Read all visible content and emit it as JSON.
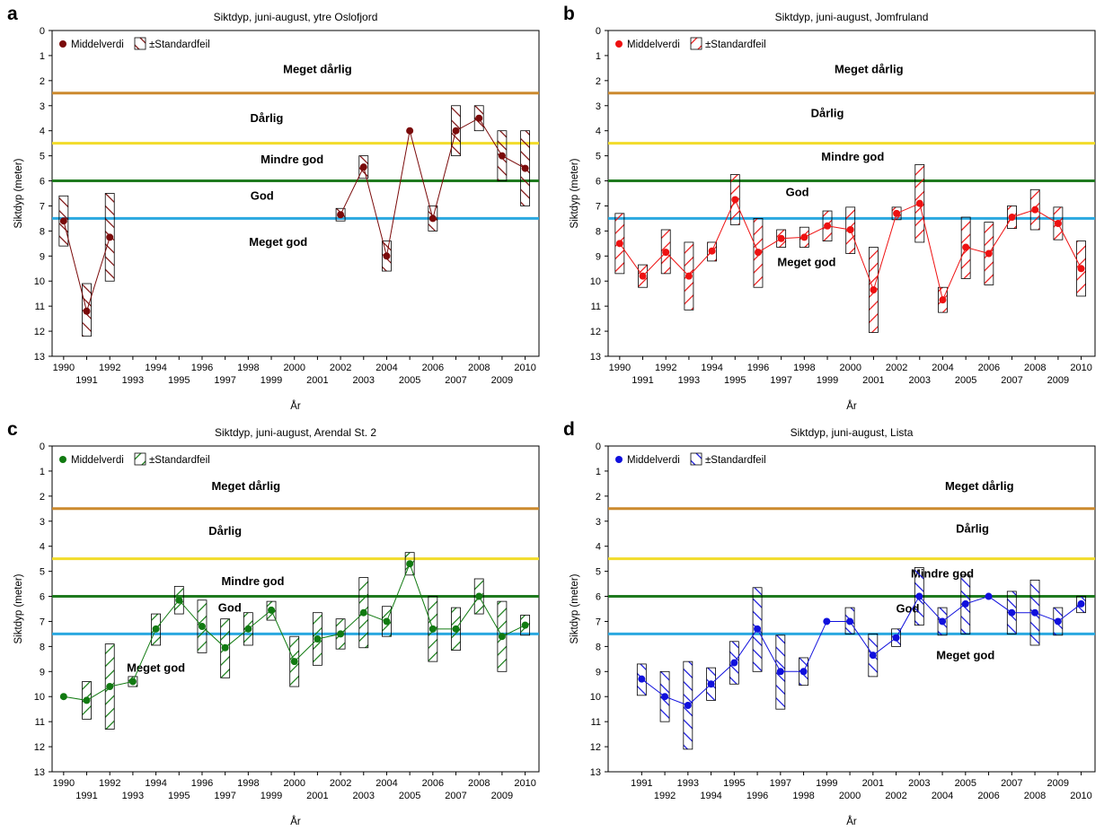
{
  "chart_data": [
    {
      "type": "line",
      "letter": "a",
      "title": "Siktdyp, juni-august, ytre Oslofjord",
      "xlabel": "År",
      "ylabel": "Siktdyp (meter)",
      "ylim": [
        0,
        13
      ],
      "y_inverted": true,
      "xlim": [
        1989.5,
        2010.6
      ],
      "x_ticks": [
        1990,
        1991,
        1992,
        1993,
        1994,
        1995,
        1996,
        1997,
        1998,
        1999,
        2000,
        2001,
        2002,
        2003,
        2004,
        2005,
        2006,
        2007,
        2008,
        2009,
        2010
      ],
      "y_ticks": [
        0,
        1,
        2,
        3,
        4,
        5,
        6,
        7,
        8,
        9,
        10,
        11,
        12,
        13
      ],
      "color": "#7a0a0a",
      "hatch": "back",
      "legend": {
        "mean": "Middelverdi",
        "se": "±Standardfeil",
        "position": "top-left"
      },
      "points": [
        {
          "year": 1990,
          "mean": 7.6,
          "lo": 6.6,
          "hi": 8.6
        },
        {
          "year": 1991,
          "mean": 11.2,
          "lo": 10.1,
          "hi": 12.2
        },
        {
          "year": 1992,
          "mean": 8.25,
          "lo": 6.5,
          "hi": 10.0
        },
        {
          "year": 2002,
          "mean": 7.35,
          "lo": 7.1,
          "hi": 7.6
        },
        {
          "year": 2003,
          "mean": 5.45,
          "lo": 5.0,
          "hi": 5.9
        },
        {
          "year": 2004,
          "mean": 9.0,
          "lo": 8.4,
          "hi": 9.6
        },
        {
          "year": 2005,
          "mean": 4.0,
          "lo": 4.0,
          "hi": 4.0
        },
        {
          "year": 2006,
          "mean": 7.5,
          "lo": 7.0,
          "hi": 8.0
        },
        {
          "year": 2007,
          "mean": 4.0,
          "lo": 3.0,
          "hi": 5.0
        },
        {
          "year": 2008,
          "mean": 3.5,
          "lo": 3.0,
          "hi": 4.0
        },
        {
          "year": 2009,
          "mean": 5.0,
          "lo": 4.0,
          "hi": 6.0
        },
        {
          "year": 2010,
          "mean": 5.5,
          "lo": 4.0,
          "hi": 7.0
        }
      ],
      "thresholds": [
        {
          "value": 2.5,
          "color": "#cc8a2e"
        },
        {
          "value": 4.5,
          "color": "#f2dc2a"
        },
        {
          "value": 6.0,
          "color": "#1f7a1f"
        },
        {
          "value": 7.5,
          "color": "#2aa8e0"
        }
      ],
      "class_labels": [
        {
          "text": "Meget dårlig",
          "year": 2001,
          "y": 1.7
        },
        {
          "text": "Dårlig",
          "year": 1998.8,
          "y": 3.65
        },
        {
          "text": "Mindre god",
          "year": 1999.9,
          "y": 5.3
        },
        {
          "text": "God",
          "year": 1998.6,
          "y": 6.75
        },
        {
          "text": "Meget god",
          "year": 1999.3,
          "y": 8.6
        }
      ]
    },
    {
      "type": "line",
      "letter": "b",
      "title": "Siktdyp, juni-august, Jomfruland",
      "xlabel": "År",
      "ylabel": "Siktdyp (meter)",
      "ylim": [
        0,
        13
      ],
      "y_inverted": true,
      "xlim": [
        1989.5,
        2010.6
      ],
      "x_ticks": [
        1990,
        1991,
        1992,
        1993,
        1994,
        1995,
        1996,
        1997,
        1998,
        1999,
        2000,
        2001,
        2002,
        2003,
        2004,
        2005,
        2006,
        2007,
        2008,
        2009,
        2010
      ],
      "y_ticks": [
        0,
        1,
        2,
        3,
        4,
        5,
        6,
        7,
        8,
        9,
        10,
        11,
        12,
        13
      ],
      "color": "#ee1111",
      "hatch": "forward",
      "legend": {
        "mean": "Middelverdi",
        "se": "±Standardfeil",
        "position": "top-left"
      },
      "points": [
        {
          "year": 1990,
          "mean": 8.5,
          "lo": 7.3,
          "hi": 9.7
        },
        {
          "year": 1991,
          "mean": 9.8,
          "lo": 9.35,
          "hi": 10.25
        },
        {
          "year": 1992,
          "mean": 8.85,
          "lo": 7.95,
          "hi": 9.7
        },
        {
          "year": 1993,
          "mean": 9.8,
          "lo": 8.45,
          "hi": 11.15
        },
        {
          "year": 1994,
          "mean": 8.8,
          "lo": 8.45,
          "hi": 9.2
        },
        {
          "year": 1995,
          "mean": 6.75,
          "lo": 5.75,
          "hi": 7.75
        },
        {
          "year": 1996,
          "mean": 8.85,
          "lo": 7.5,
          "hi": 10.25
        },
        {
          "year": 1997,
          "mean": 8.3,
          "lo": 7.95,
          "hi": 8.65
        },
        {
          "year": 1998,
          "mean": 8.25,
          "lo": 7.85,
          "hi": 8.65
        },
        {
          "year": 1999,
          "mean": 7.8,
          "lo": 7.2,
          "hi": 8.4
        },
        {
          "year": 2000,
          "mean": 7.95,
          "lo": 7.05,
          "hi": 8.9
        },
        {
          "year": 2001,
          "mean": 10.35,
          "lo": 8.65,
          "hi": 12.05
        },
        {
          "year": 2002,
          "mean": 7.3,
          "lo": 7.05,
          "hi": 7.55
        },
        {
          "year": 2003,
          "mean": 6.9,
          "lo": 5.35,
          "hi": 8.45
        },
        {
          "year": 2004,
          "mean": 10.75,
          "lo": 10.25,
          "hi": 11.25
        },
        {
          "year": 2005,
          "mean": 8.65,
          "lo": 7.45,
          "hi": 9.9
        },
        {
          "year": 2006,
          "mean": 8.9,
          "lo": 7.65,
          "hi": 10.15
        },
        {
          "year": 2007,
          "mean": 7.45,
          "lo": 7.0,
          "hi": 7.9
        },
        {
          "year": 2008,
          "mean": 7.15,
          "lo": 6.35,
          "hi": 7.95
        },
        {
          "year": 2009,
          "mean": 7.7,
          "lo": 7.05,
          "hi": 8.35
        },
        {
          "year": 2010,
          "mean": 9.5,
          "lo": 8.4,
          "hi": 10.6
        }
      ],
      "thresholds": [
        {
          "value": 2.5,
          "color": "#cc8a2e"
        },
        {
          "value": 4.5,
          "color": "#f2dc2a"
        },
        {
          "value": 6.0,
          "color": "#1f7a1f"
        },
        {
          "value": 7.5,
          "color": "#2aa8e0"
        }
      ],
      "class_labels": [
        {
          "text": "Meget dårlig",
          "year": 2000.8,
          "y": 1.7
        },
        {
          "text": "Dårlig",
          "year": 1999.0,
          "y": 3.45
        },
        {
          "text": "Mindre god",
          "year": 2000.1,
          "y": 5.2
        },
        {
          "text": "God",
          "year": 1997.7,
          "y": 6.6
        },
        {
          "text": "Meget god",
          "year": 1998.1,
          "y": 9.4
        }
      ]
    },
    {
      "type": "line",
      "letter": "c",
      "title": "Siktdyp, juni-august, Arendal St. 2",
      "xlabel": "År",
      "ylabel": "Siktdyp (meter)",
      "ylim": [
        0,
        13
      ],
      "y_inverted": true,
      "xlim": [
        1989.5,
        2010.6
      ],
      "x_ticks": [
        1990,
        1991,
        1992,
        1993,
        1994,
        1995,
        1996,
        1997,
        1998,
        1999,
        2000,
        2001,
        2002,
        2003,
        2004,
        2005,
        2006,
        2007,
        2008,
        2009,
        2010
      ],
      "y_ticks": [
        0,
        1,
        2,
        3,
        4,
        5,
        6,
        7,
        8,
        9,
        10,
        11,
        12,
        13
      ],
      "color": "#117a11",
      "hatch": "forward",
      "legend": {
        "mean": "Middelverdi",
        "se": "±Standardfeil",
        "position": "top-left"
      },
      "points": [
        {
          "year": 1990,
          "mean": 10.0,
          "lo": 10.0,
          "hi": 10.0
        },
        {
          "year": 1991,
          "mean": 10.15,
          "lo": 9.4,
          "hi": 10.9
        },
        {
          "year": 1992,
          "mean": 9.6,
          "lo": 7.9,
          "hi": 11.3
        },
        {
          "year": 1993,
          "mean": 9.4,
          "lo": 9.2,
          "hi": 9.6
        },
        {
          "year": 1994,
          "mean": 7.3,
          "lo": 6.7,
          "hi": 7.95
        },
        {
          "year": 1995,
          "mean": 6.15,
          "lo": 5.6,
          "hi": 6.7
        },
        {
          "year": 1996,
          "mean": 7.2,
          "lo": 6.15,
          "hi": 8.25
        },
        {
          "year": 1997,
          "mean": 8.05,
          "lo": 6.9,
          "hi": 9.25
        },
        {
          "year": 1998,
          "mean": 7.3,
          "lo": 6.65,
          "hi": 7.95
        },
        {
          "year": 1999,
          "mean": 6.55,
          "lo": 6.2,
          "hi": 6.95
        },
        {
          "year": 2000,
          "mean": 8.6,
          "lo": 7.6,
          "hi": 9.6
        },
        {
          "year": 2001,
          "mean": 7.7,
          "lo": 6.65,
          "hi": 8.75
        },
        {
          "year": 2002,
          "mean": 7.5,
          "lo": 6.9,
          "hi": 8.1
        },
        {
          "year": 2003,
          "mean": 6.65,
          "lo": 5.25,
          "hi": 8.05
        },
        {
          "year": 2004,
          "mean": 7.0,
          "lo": 6.4,
          "hi": 7.6
        },
        {
          "year": 2005,
          "mean": 4.7,
          "lo": 4.25,
          "hi": 5.15
        },
        {
          "year": 2006,
          "mean": 7.3,
          "lo": 6.0,
          "hi": 8.6
        },
        {
          "year": 2007,
          "mean": 7.3,
          "lo": 6.45,
          "hi": 8.15
        },
        {
          "year": 2008,
          "mean": 6.0,
          "lo": 5.3,
          "hi": 6.7
        },
        {
          "year": 2009,
          "mean": 7.6,
          "lo": 6.2,
          "hi": 9.0
        },
        {
          "year": 2010,
          "mean": 7.15,
          "lo": 6.75,
          "hi": 7.55
        }
      ],
      "thresholds": [
        {
          "value": 2.5,
          "color": "#cc8a2e"
        },
        {
          "value": 4.5,
          "color": "#f2dc2a"
        },
        {
          "value": 6.0,
          "color": "#1f7a1f"
        },
        {
          "value": 7.5,
          "color": "#2aa8e0"
        }
      ],
      "class_labels": [
        {
          "text": "Meget dårlig",
          "year": 1997.9,
          "y": 1.75
        },
        {
          "text": "Dårlig",
          "year": 1997.0,
          "y": 3.55
        },
        {
          "text": "Mindre god",
          "year": 1998.2,
          "y": 5.55
        },
        {
          "text": "God",
          "year": 1997.2,
          "y": 6.6
        },
        {
          "text": "Meget god",
          "year": 1994.0,
          "y": 9.0
        }
      ]
    },
    {
      "type": "line",
      "letter": "d",
      "title": "Siktdyp, juni-august, Lista",
      "xlabel": "År",
      "ylabel": "Siktdyp (meter)",
      "ylim": [
        0,
        13
      ],
      "y_inverted": true,
      "xlim": [
        1989.55,
        2010.6
      ],
      "x_ticks": [
        1991,
        1992,
        1993,
        1994,
        1995,
        1996,
        1997,
        1998,
        1999,
        2000,
        2001,
        2002,
        2003,
        2004,
        2005,
        2006,
        2007,
        2008,
        2009,
        2010
      ],
      "y_ticks": [
        0,
        1,
        2,
        3,
        4,
        5,
        6,
        7,
        8,
        9,
        10,
        11,
        12,
        13
      ],
      "color": "#1010dd",
      "hatch": "back",
      "legend": {
        "mean": "Middelverdi",
        "se": "±Standardfeil",
        "position": "top-left"
      },
      "points": [
        {
          "year": 1991,
          "mean": 9.3,
          "lo": 8.7,
          "hi": 9.95
        },
        {
          "year": 1992,
          "mean": 10.0,
          "lo": 9.0,
          "hi": 11.0
        },
        {
          "year": 1993,
          "mean": 10.35,
          "lo": 8.6,
          "hi": 12.1
        },
        {
          "year": 1994,
          "mean": 9.5,
          "lo": 8.85,
          "hi": 10.15
        },
        {
          "year": 1995,
          "mean": 8.65,
          "lo": 7.8,
          "hi": 9.5
        },
        {
          "year": 1996,
          "mean": 7.3,
          "lo": 5.65,
          "hi": 9.0
        },
        {
          "year": 1997,
          "mean": 9.0,
          "lo": 7.55,
          "hi": 10.5
        },
        {
          "year": 1998,
          "mean": 9.0,
          "lo": 8.45,
          "hi": 9.55
        },
        {
          "year": 1999,
          "mean": 7.0,
          "lo": 7.0,
          "hi": 7.0
        },
        {
          "year": 2000,
          "mean": 7.0,
          "lo": 6.45,
          "hi": 7.5
        },
        {
          "year": 2001,
          "mean": 8.35,
          "lo": 7.5,
          "hi": 9.2
        },
        {
          "year": 2002,
          "mean": 7.65,
          "lo": 7.3,
          "hi": 8.0
        },
        {
          "year": 2003,
          "mean": 6.0,
          "lo": 4.85,
          "hi": 7.15
        },
        {
          "year": 2004,
          "mean": 7.0,
          "lo": 6.45,
          "hi": 7.55
        },
        {
          "year": 2005,
          "mean": 6.3,
          "lo": 5.15,
          "hi": 7.5
        },
        {
          "year": 2006,
          "mean": 6.0,
          "lo": 6.0,
          "hi": 6.0
        },
        {
          "year": 2007,
          "mean": 6.65,
          "lo": 5.8,
          "hi": 7.5
        },
        {
          "year": 2008,
          "mean": 6.65,
          "lo": 5.35,
          "hi": 7.95
        },
        {
          "year": 2009,
          "mean": 7.0,
          "lo": 6.45,
          "hi": 7.55
        },
        {
          "year": 2010,
          "mean": 6.3,
          "lo": 6.0,
          "hi": 6.65
        }
      ],
      "thresholds": [
        {
          "value": 2.5,
          "color": "#cc8a2e"
        },
        {
          "value": 4.5,
          "color": "#f2dc2a"
        },
        {
          "value": 6.0,
          "color": "#1f7a1f"
        },
        {
          "value": 7.5,
          "color": "#2aa8e0"
        }
      ],
      "class_labels": [
        {
          "text": "Meget dårlig",
          "year": 2005.6,
          "y": 1.75
        },
        {
          "text": "Dårlig",
          "year": 2005.3,
          "y": 3.45
        },
        {
          "text": "Mindre god",
          "year": 2004.0,
          "y": 5.25
        },
        {
          "text": "God",
          "year": 2002.5,
          "y": 6.65
        },
        {
          "text": "Meget god",
          "year": 2005.0,
          "y": 8.5
        }
      ]
    }
  ]
}
